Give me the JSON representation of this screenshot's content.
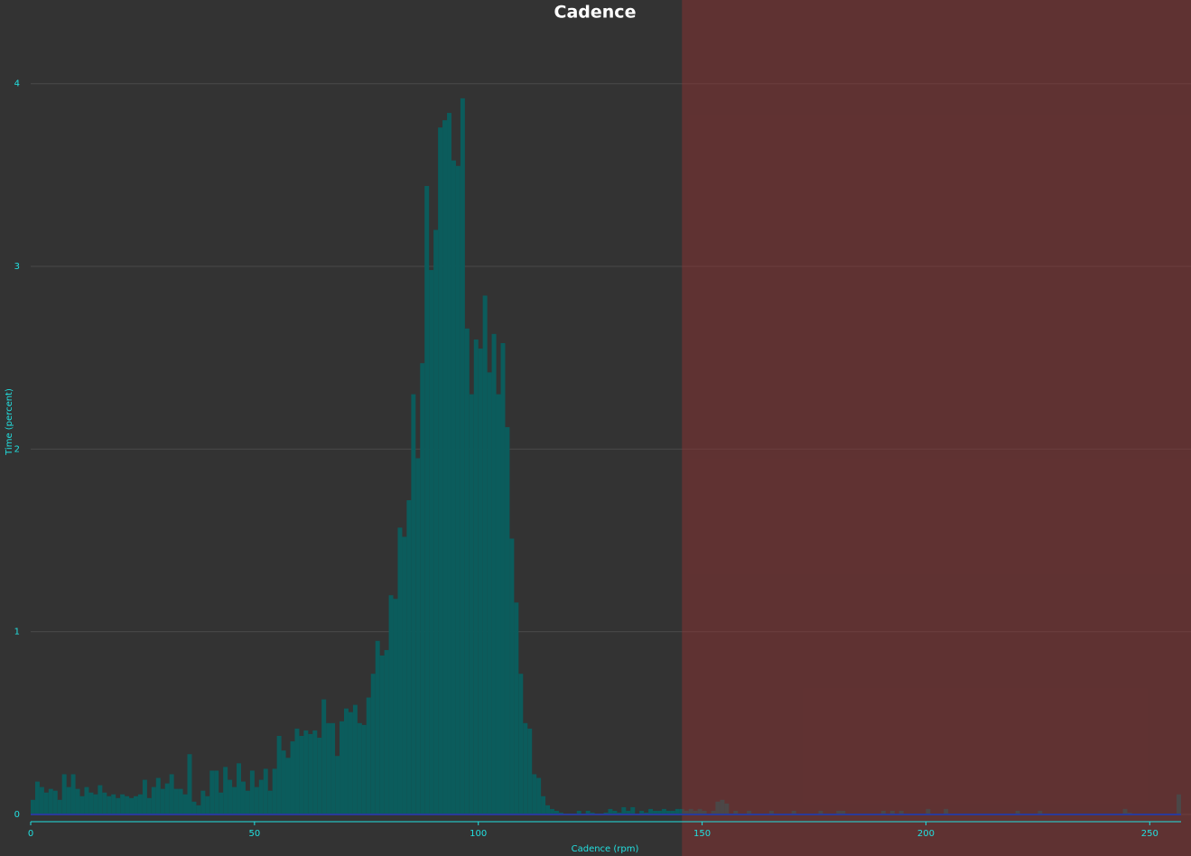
{
  "chart_data": {
    "type": "histogram",
    "title": "Cadence",
    "xlabel": "Cadence (rpm)",
    "ylabel": "Time (percent)",
    "bins": [
      0,
      1,
      2,
      3,
      4,
      5,
      6,
      7,
      8,
      9,
      10,
      11,
      12,
      13,
      14,
      15,
      16,
      17,
      18,
      19,
      20,
      21,
      22,
      23,
      24,
      25,
      26,
      27,
      28,
      29,
      30,
      31,
      32,
      33,
      34,
      35,
      36,
      37,
      38,
      39,
      40,
      41,
      42,
      43,
      44,
      45,
      46,
      47,
      48,
      49,
      50,
      51,
      52,
      53,
      54,
      55,
      56,
      57,
      58,
      59,
      60,
      61,
      62,
      63,
      64,
      65,
      66,
      67,
      68,
      69,
      70,
      71,
      72,
      73,
      74,
      75,
      76,
      77,
      78,
      79,
      80,
      81,
      82,
      83,
      84,
      85,
      86,
      87,
      88,
      89,
      90,
      91,
      92,
      93,
      94,
      95,
      96,
      97,
      98,
      99,
      100,
      101,
      102,
      103,
      104,
      105,
      106,
      107,
      108,
      109,
      110,
      111,
      112,
      113,
      114,
      115,
      116,
      117,
      118,
      119,
      120,
      121,
      122,
      123,
      124,
      125,
      126,
      127,
      128,
      129,
      130,
      131,
      132,
      133,
      134,
      135,
      136,
      137,
      138,
      139,
      140,
      141,
      142,
      143,
      144,
      145,
      146,
      147,
      148,
      149,
      150,
      151,
      152,
      153,
      154,
      155,
      156,
      157,
      158,
      159,
      160,
      161,
      162,
      163,
      164,
      165,
      166,
      167,
      168,
      169,
      170,
      171,
      172,
      173,
      174,
      175,
      176,
      177,
      178,
      179,
      180,
      181,
      182,
      183,
      184,
      185,
      186,
      187,
      188,
      189,
      190,
      191,
      192,
      193,
      194,
      195,
      196,
      197,
      198,
      199,
      200,
      201,
      202,
      203,
      204,
      205,
      206,
      207,
      208,
      209,
      210,
      211,
      212,
      213,
      214,
      215,
      216,
      217,
      218,
      219,
      220,
      221,
      222,
      223,
      224,
      225,
      226,
      227,
      228,
      229,
      230,
      231,
      232,
      233,
      234,
      235,
      236,
      237,
      238,
      239,
      240,
      241,
      242,
      243,
      244,
      245,
      246,
      247,
      248,
      249,
      250,
      251,
      252,
      253,
      254,
      255,
      256,
      257
    ],
    "counts": [
      0.08,
      0.18,
      0.15,
      0.12,
      0.14,
      0.13,
      0.08,
      0.22,
      0.15,
      0.22,
      0.14,
      0.1,
      0.15,
      0.12,
      0.11,
      0.16,
      0.12,
      0.1,
      0.11,
      0.09,
      0.11,
      0.1,
      0.09,
      0.1,
      0.11,
      0.19,
      0.09,
      0.15,
      0.2,
      0.14,
      0.17,
      0.22,
      0.14,
      0.14,
      0.11,
      0.33,
      0.07,
      0.05,
      0.13,
      0.1,
      0.24,
      0.24,
      0.12,
      0.26,
      0.19,
      0.15,
      0.28,
      0.18,
      0.13,
      0.24,
      0.15,
      0.19,
      0.25,
      0.13,
      0.25,
      0.43,
      0.35,
      0.31,
      0.4,
      0.47,
      0.43,
      0.46,
      0.44,
      0.46,
      0.42,
      0.63,
      0.5,
      0.5,
      0.32,
      0.51,
      0.58,
      0.56,
      0.6,
      0.5,
      0.49,
      0.64,
      0.77,
      0.95,
      0.87,
      0.9,
      1.2,
      1.18,
      1.57,
      1.52,
      1.72,
      2.3,
      1.95,
      2.47,
      3.44,
      2.98,
      3.2,
      3.76,
      3.8,
      3.84,
      3.58,
      3.55,
      3.92,
      2.66,
      2.3,
      2.6,
      2.55,
      2.84,
      2.42,
      2.63,
      2.3,
      2.58,
      2.12,
      1.51,
      1.16,
      0.77,
      0.5,
      0.47,
      0.22,
      0.2,
      0.1,
      0.05,
      0.03,
      0.02,
      0.01,
      0,
      0,
      0,
      0.02,
      0,
      0.02,
      0.01,
      0,
      0,
      0.01,
      0.03,
      0.02,
      0.01,
      0.04,
      0.02,
      0.04,
      0,
      0.02,
      0.01,
      0.03,
      0.02,
      0.02,
      0.03,
      0.02,
      0.02,
      0.03,
      0.03,
      0.02,
      0.03,
      0.02,
      0.03,
      0.02,
      0,
      0.02,
      0.07,
      0.08,
      0.06,
      0,
      0.02,
      0,
      0,
      0.02,
      0,
      0,
      0,
      0,
      0.02,
      0,
      0,
      0,
      0,
      0.02,
      0,
      0,
      0,
      0,
      0,
      0.02,
      0,
      0,
      0,
      0.02,
      0.02,
      0,
      0,
      0,
      0,
      0,
      0,
      0,
      0,
      0.02,
      0,
      0.02,
      0,
      0.02,
      0,
      0,
      0,
      0,
      0,
      0.03,
      0,
      0,
      0,
      0.03,
      0,
      0,
      0,
      0,
      0,
      0,
      0,
      0,
      0,
      0,
      0,
      0,
      0,
      0,
      0,
      0.02,
      0,
      0,
      0,
      0,
      0.02,
      0,
      0,
      0,
      0,
      0,
      0,
      0,
      0,
      0,
      0,
      0,
      0,
      0,
      0,
      0,
      0,
      0,
      0,
      0.03,
      0.01,
      0,
      0,
      0,
      0,
      0,
      0,
      0,
      0,
      0,
      0,
      0.11
    ],
    "color": "#0b5c5c",
    "xlim": [
      0,
      257
    ],
    "ylim": [
      0,
      4.3
    ],
    "xticks": [
      0,
      50,
      100,
      150,
      200,
      250
    ],
    "yticks": [
      0,
      1,
      2,
      3,
      4
    ],
    "grid": true,
    "zone_start": 145.5,
    "zone_color": "rgba(140,50,50,0.5)"
  }
}
